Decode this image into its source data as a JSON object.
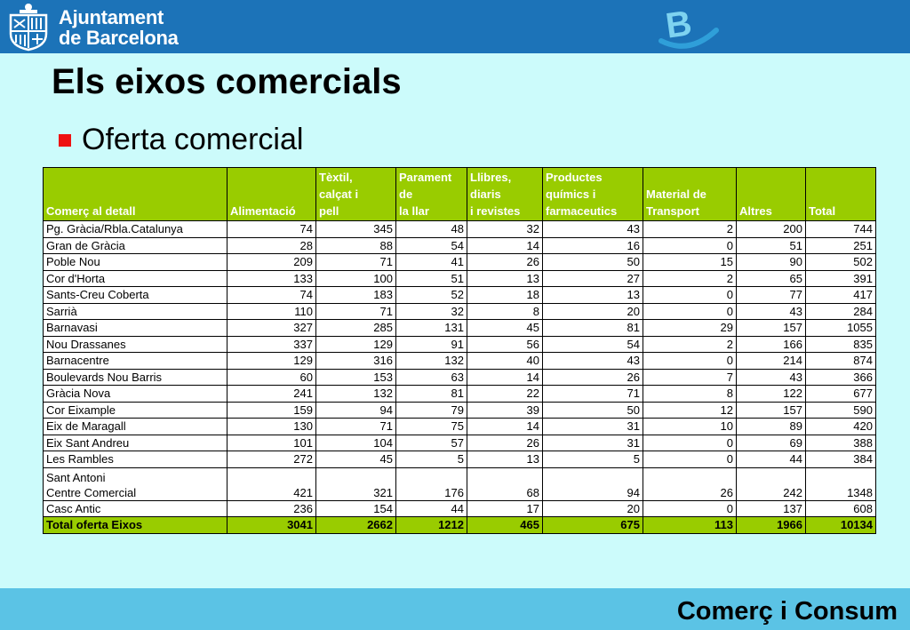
{
  "header": {
    "logo_line1": "Ajuntament",
    "logo_line2": "de Barcelona",
    "brand_color": "#1c73b8",
    "b_logo_letter": "B"
  },
  "title": "Els eixos comercials",
  "subtitle": "Oferta comercial",
  "table": {
    "header_color": "#99cc00",
    "columns": [
      "Comerç al detall",
      "Alimentació",
      "Tèxtil, calçat i pell",
      "Parament de la llar",
      "Llibres, diaris i revistes",
      "Productes químics i farmaceutics",
      "Material de Transport",
      "Altres",
      "Total"
    ],
    "columns_lines": [
      [
        "Comerç al detall"
      ],
      [
        "Alimentació"
      ],
      [
        "Tèxtil,",
        "calçat i",
        "pell"
      ],
      [
        "Parament",
        "de",
        "la llar"
      ],
      [
        "Llibres,",
        "diaris",
        "i revistes"
      ],
      [
        "Productes",
        "químics i",
        "farmaceutics"
      ],
      [
        "Material de",
        "Transport"
      ],
      [
        "Altres"
      ],
      [
        "Total"
      ]
    ],
    "rows": [
      [
        "Pg. Gràcia/Rbla.Catalunya",
        "74",
        "345",
        "48",
        "32",
        "43",
        "2",
        "200",
        "744"
      ],
      [
        "Gran de Gràcia",
        "28",
        "88",
        "54",
        "14",
        "16",
        "0",
        "51",
        "251"
      ],
      [
        "Poble Nou",
        "209",
        "71",
        "41",
        "26",
        "50",
        "15",
        "90",
        "502"
      ],
      [
        "Cor d'Horta",
        "133",
        "100",
        "51",
        "13",
        "27",
        "2",
        "65",
        "391"
      ],
      [
        "Sants-Creu Coberta",
        "74",
        "183",
        "52",
        "18",
        "13",
        "0",
        "77",
        "417"
      ],
      [
        "Sarrià",
        "110",
        "71",
        "32",
        "8",
        "20",
        "0",
        "43",
        "284"
      ],
      [
        "Barnavasi",
        "327",
        "285",
        "131",
        "45",
        "81",
        "29",
        "157",
        "1055"
      ],
      [
        "Nou Drassanes",
        "337",
        "129",
        "91",
        "56",
        "54",
        "2",
        "166",
        "835"
      ],
      [
        "Barnacentre",
        "129",
        "316",
        "132",
        "40",
        "43",
        "0",
        "214",
        "874"
      ],
      [
        "Boulevards Nou Barris",
        "60",
        "153",
        "63",
        "14",
        "26",
        "7",
        "43",
        "366"
      ],
      [
        "Gràcia Nova",
        "241",
        "132",
        "81",
        "22",
        "71",
        "8",
        "122",
        "677"
      ],
      [
        "Cor Eixample",
        "159",
        "94",
        "79",
        "39",
        "50",
        "12",
        "157",
        "590"
      ],
      [
        "Eix de Maragall",
        "130",
        "71",
        "75",
        "14",
        "31",
        "10",
        "89",
        "420"
      ],
      [
        "Eix Sant Andreu",
        "101",
        "104",
        "57",
        "26",
        "31",
        "0",
        "69",
        "388"
      ],
      [
        "Les Rambles",
        "272",
        "45",
        "5",
        "13",
        "5",
        "0",
        "44",
        "384"
      ],
      [
        "Sant Antoni Centre Comercial",
        "421",
        "321",
        "176",
        "68",
        "94",
        "26",
        "242",
        "1348"
      ],
      [
        "Casc Antic",
        "236",
        "154",
        "44",
        "17",
        "20",
        "0",
        "137",
        "608"
      ]
    ],
    "tall_row_name_lines": [
      "Sant Antoni",
      "Centre Comercial"
    ],
    "total_row": [
      "Total oferta Eixos",
      "3041",
      "2662",
      "1212",
      "465",
      "675",
      "113",
      "1966",
      "10134"
    ]
  },
  "footer": {
    "label": "Comerç i Consum",
    "color": "#5bc3e5"
  }
}
